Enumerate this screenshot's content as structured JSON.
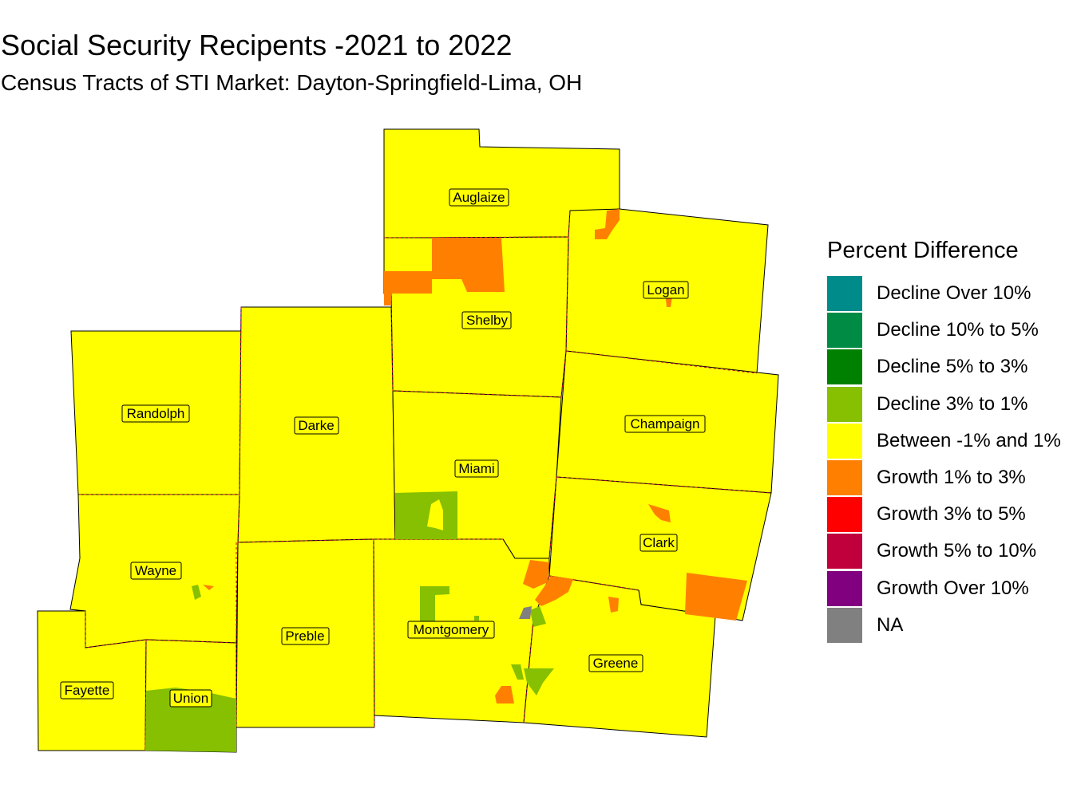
{
  "title": "Social Security Recipents -2021 to 2022",
  "subtitle": "Census Tracts of STI Market: Dayton-Springfield-Lima, OH",
  "legend": {
    "title": "Percent Difference",
    "items": [
      {
        "label": "Decline Over 10%",
        "color": "#008b8b"
      },
      {
        "label": "Decline 10% to 5%",
        "color": "#008b45"
      },
      {
        "label": "Decline 5% to 3%",
        "color": "#008000"
      },
      {
        "label": "Decline 3% to 1%",
        "color": "#86c000"
      },
      {
        "label": "Between -1% and 1%",
        "color": "#ffff00"
      },
      {
        "label": "Growth 1% to 3%",
        "color": "#ff8000"
      },
      {
        "label": "Growth 3% to 5%",
        "color": "#ff0000"
      },
      {
        "label": "Growth 5% to 10%",
        "color": "#c0003c"
      },
      {
        "label": "Growth Over 10%",
        "color": "#800080"
      },
      {
        "label": "NA",
        "color": "#808080"
      }
    ]
  },
  "counties": [
    {
      "name": "Auglaize",
      "category": "Between -1% and 1%"
    },
    {
      "name": "Shelby",
      "category": "Between -1% and 1%"
    },
    {
      "name": "Logan",
      "category": "Between -1% and 1%"
    },
    {
      "name": "Randolph",
      "category": "Between -1% and 1%"
    },
    {
      "name": "Darke",
      "category": "Between -1% and 1%"
    },
    {
      "name": "Miami",
      "category": "Between -1% and 1%"
    },
    {
      "name": "Champaign",
      "category": "Between -1% and 1%"
    },
    {
      "name": "Clark",
      "category": "Between -1% and 1%"
    },
    {
      "name": "Wayne",
      "category": "Between -1% and 1%"
    },
    {
      "name": "Preble",
      "category": "Between -1% and 1%"
    },
    {
      "name": "Montgomery",
      "category": "Between -1% and 1%"
    },
    {
      "name": "Greene",
      "category": "Between -1% and 1%"
    },
    {
      "name": "Fayette",
      "category": "Between -1% and 1%"
    },
    {
      "name": "Union",
      "category": "Between -1% and 1%"
    }
  ]
}
